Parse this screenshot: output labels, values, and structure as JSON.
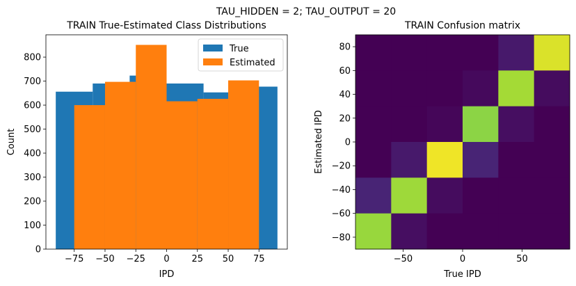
{
  "figure_title": "TAU_HIDDEN = 2; TAU_OUTPUT = 20",
  "chart_data": [
    {
      "type": "bar",
      "title": "TRAIN True-Estimated Class Distributions",
      "xlabel": "IPD",
      "ylabel": "Count",
      "xlim": [
        -98,
        98
      ],
      "ylim": [
        0,
        893
      ],
      "xticks": [
        -75,
        -50,
        -25,
        0,
        25,
        50,
        75
      ],
      "xtick_labels": [
        "−75",
        "−50",
        "−25",
        "0",
        "25",
        "50",
        "75"
      ],
      "yticks": [
        0,
        100,
        200,
        300,
        400,
        500,
        600,
        700,
        800
      ],
      "yticks_labels": [
        "0",
        "100",
        "200",
        "300",
        "400",
        "500",
        "600",
        "700",
        "800"
      ],
      "legend_position": "upper-right",
      "series": [
        {
          "name": "True",
          "color": "#1f77b4",
          "bins": [
            {
              "x0": -90,
              "x1": -60,
              "value": 656
            },
            {
              "x0": -60,
              "x1": -30,
              "value": 690
            },
            {
              "x0": -30,
              "x1": 0,
              "value": 723
            },
            {
              "x0": 0,
              "x1": 30,
              "value": 690
            },
            {
              "x0": 30,
              "x1": 60,
              "value": 653
            },
            {
              "x0": 60,
              "x1": 90,
              "value": 677
            }
          ]
        },
        {
          "name": "Estimated",
          "color": "#ff7f0e",
          "bins": [
            {
              "x0": -75,
              "x1": -50,
              "value": 600
            },
            {
              "x0": -50,
              "x1": -25,
              "value": 697
            },
            {
              "x0": -25,
              "x1": 0,
              "value": 851
            },
            {
              "x0": 0,
              "x1": 25,
              "value": 616
            },
            {
              "x0": 25,
              "x1": 50,
              "value": 626
            },
            {
              "x0": 50,
              "x1": 75,
              "value": 703
            }
          ]
        }
      ]
    },
    {
      "type": "heatmap",
      "title": "TRAIN Confusion matrix",
      "xlabel": "True IPD",
      "ylabel": "Estimated IPD",
      "xlim": [
        -90,
        90
      ],
      "ylim": [
        -90,
        90
      ],
      "xticks": [
        -50,
        0,
        50
      ],
      "xtick_labels": [
        "−50",
        "0",
        "50"
      ],
      "yticks": [
        -80,
        -60,
        -40,
        -20,
        0,
        20,
        40,
        60,
        80
      ],
      "ytick_labels": [
        "−80",
        "−60",
        "−40",
        "−20",
        "0",
        "20",
        "40",
        "60",
        "80"
      ],
      "colormap": "viridis",
      "rows_top_to_bottom": [
        [
          0.0,
          0.0,
          0.0,
          0.0,
          0.09,
          0.95
        ],
        [
          0.0,
          0.0,
          0.0,
          0.03,
          0.87,
          0.04
        ],
        [
          0.0,
          0.0,
          0.02,
          0.83,
          0.05,
          0.0
        ],
        [
          0.0,
          0.09,
          0.98,
          0.13,
          0.0,
          0.0
        ],
        [
          0.13,
          0.86,
          0.04,
          0.0,
          0.0,
          0.0
        ],
        [
          0.85,
          0.05,
          0.0,
          0.0,
          0.0,
          0.0
        ]
      ]
    }
  ]
}
